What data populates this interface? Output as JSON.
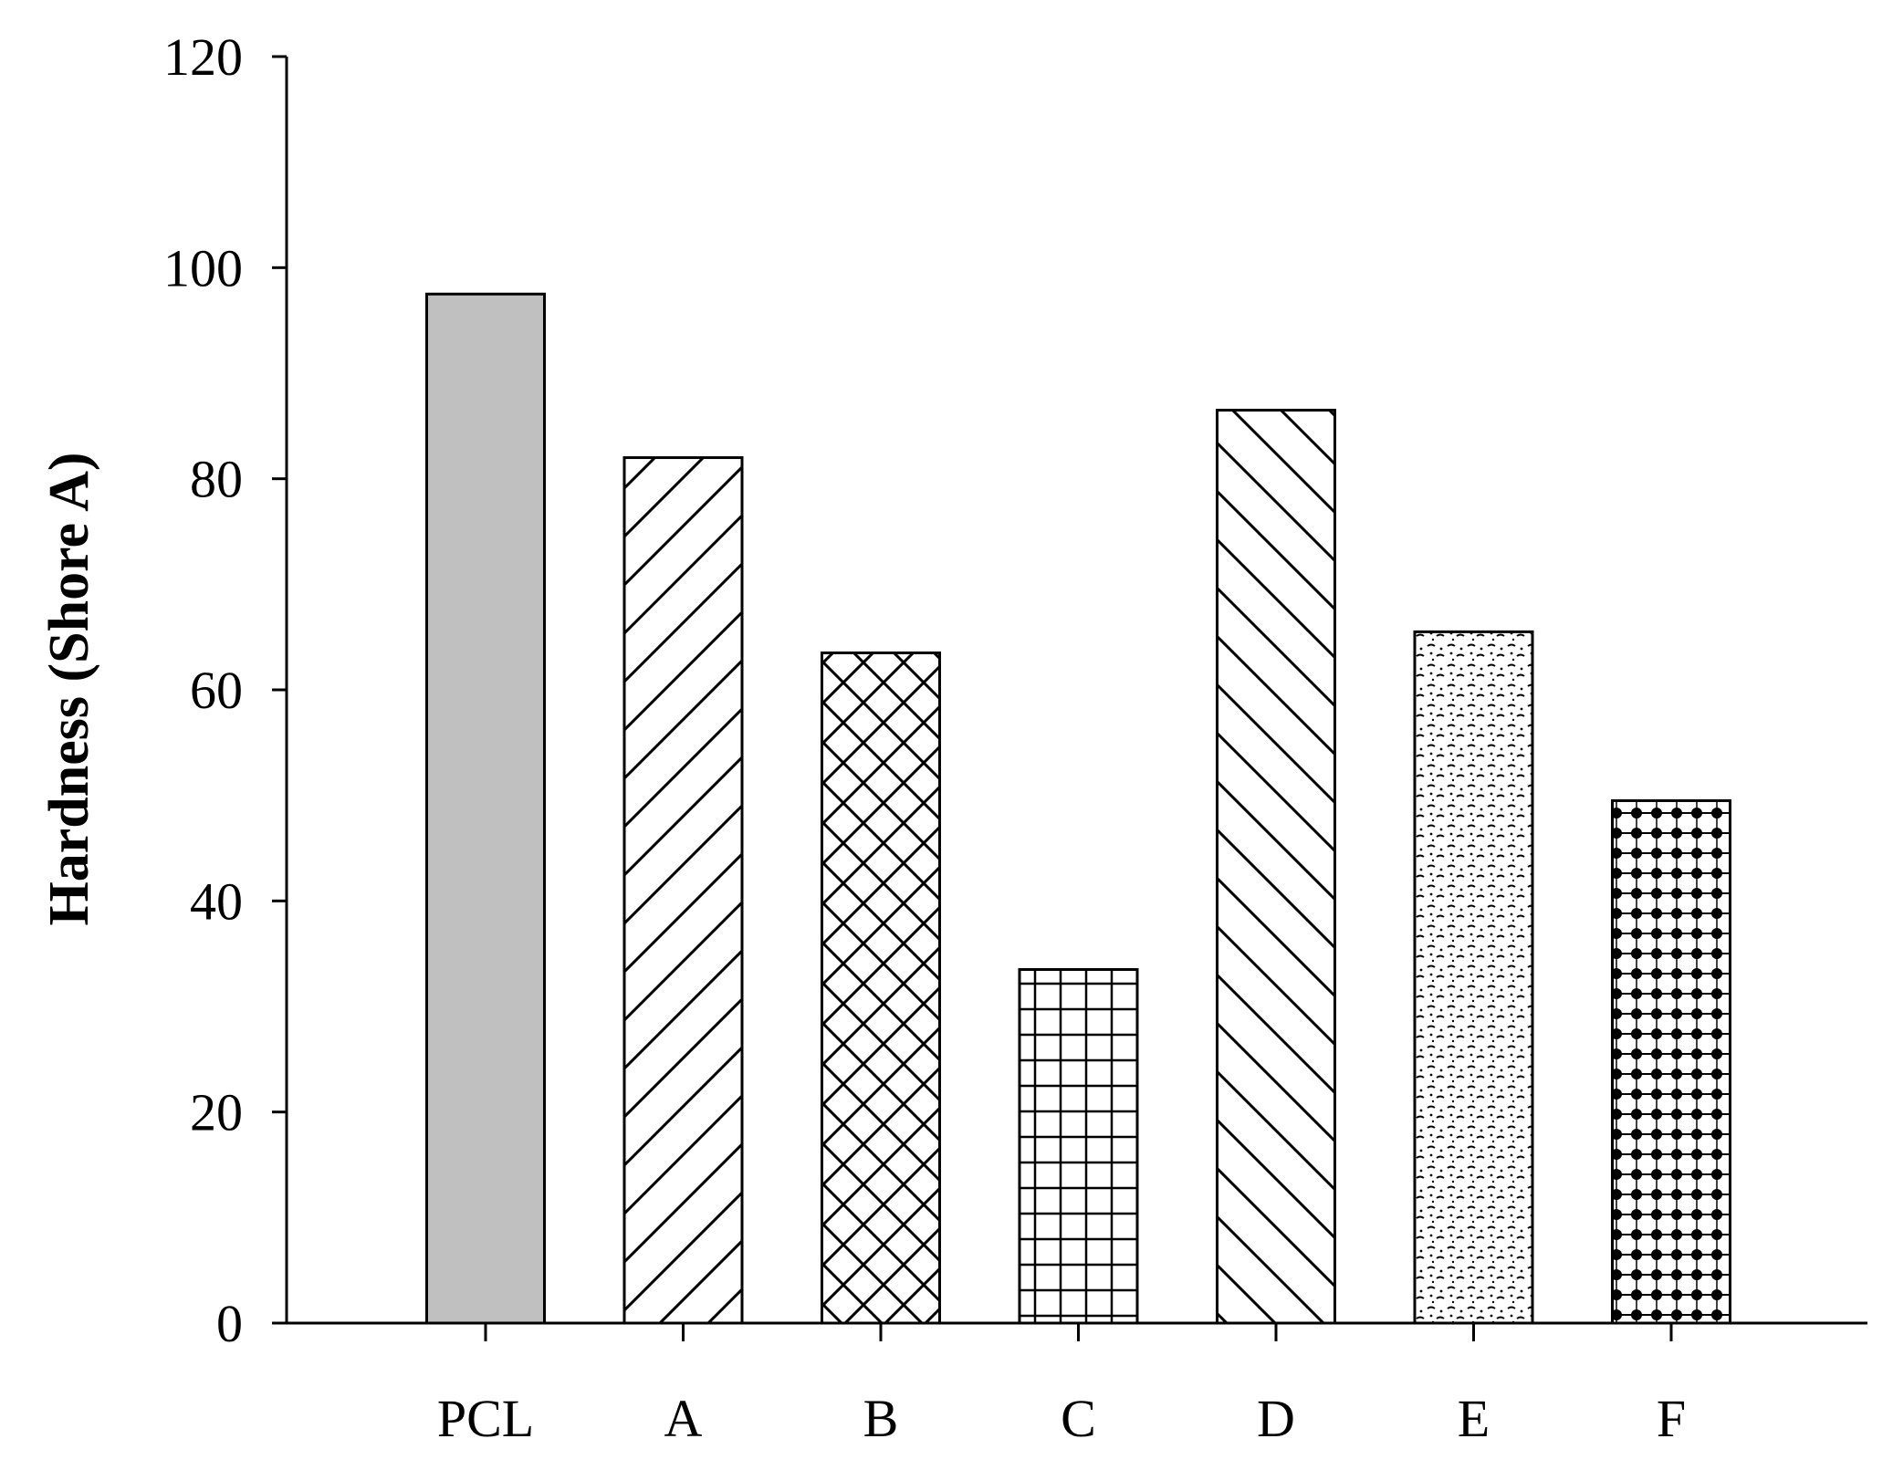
{
  "chart_data": {
    "type": "bar",
    "title": "",
    "xlabel": "",
    "ylabel": "Hardness (Shore A)",
    "ylim": [
      0,
      120
    ],
    "yticks": [
      0,
      20,
      40,
      60,
      80,
      100,
      120
    ],
    "grid": false,
    "legend": "none",
    "categories": [
      "PCL",
      "A",
      "B",
      "C",
      "D",
      "E",
      "F"
    ],
    "values": [
      97.5,
      82,
      63.5,
      33.5,
      86.5,
      65.5,
      49.5
    ],
    "bar_patterns": [
      "solid-gray",
      "diagonal-up",
      "crosshatch-diagonal",
      "grid",
      "diagonal-down",
      "dotted-dash",
      "black-dots"
    ]
  }
}
